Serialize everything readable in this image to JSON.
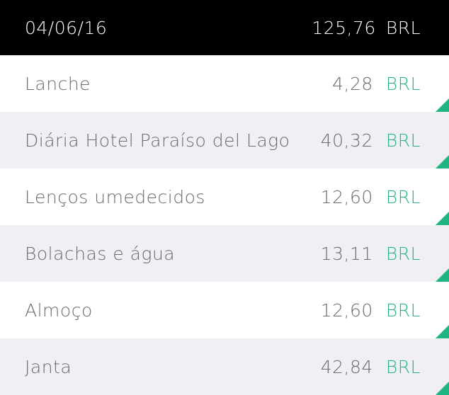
{
  "header": {
    "date": "04/06/16",
    "total": "125,76",
    "currency": "BRL"
  },
  "accent_color": "#1fb583",
  "items": [
    {
      "name": "Lanche",
      "amount": "4,28",
      "currency": "BRL"
    },
    {
      "name": "Diária Hotel Paraíso del Lago",
      "amount": "40,32",
      "currency": "BRL"
    },
    {
      "name": "Lenços umedecidos",
      "amount": "12,60",
      "currency": "BRL"
    },
    {
      "name": "Bolachas e água",
      "amount": "13,11",
      "currency": "BRL"
    },
    {
      "name": "Almoço",
      "amount": "12,60",
      "currency": "BRL"
    },
    {
      "name": "Janta",
      "amount": "42,84",
      "currency": "BRL"
    }
  ]
}
